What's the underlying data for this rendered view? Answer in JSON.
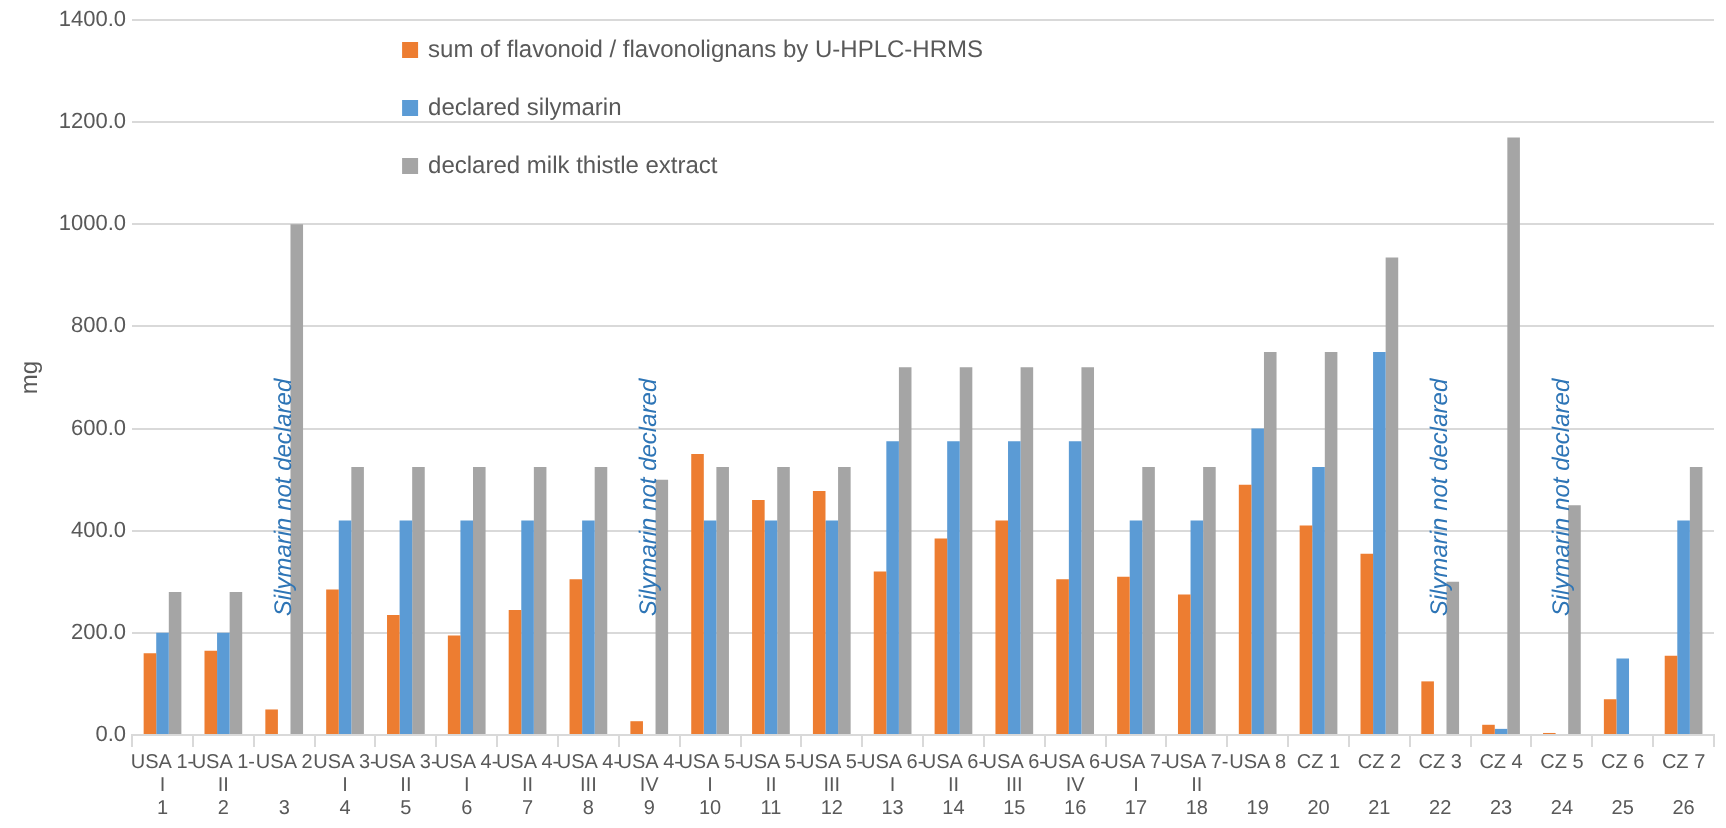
{
  "chart_data": {
    "type": "bar",
    "ylabel": "mg",
    "categories": [
      "USA 1-\nI\n1",
      "USA 1-\nII\n2",
      "USA 2\n\n3",
      "USA 3-\nI\n4",
      "USA 3-\nII\n5",
      "USA 4-\nI\n6",
      "USA 4-\nII\n7",
      "USA 4-\nIII\n8",
      "USA 4-\nIV\n9",
      "USA 5-\nI\n10",
      "USA 5-\nII\n11",
      "USA 5-\nIII\n12",
      "USA 6-\nI\n13",
      "USA 6-\nII\n14",
      "USA 6-\nIII\n15",
      "USA 6-\nIV\n16",
      "USA 7-\nI\n17",
      "USA 7-\nII\n18",
      "USA 8\n\n19",
      "CZ 1\n\n20",
      "CZ 2\n\n21",
      "CZ 3\n\n22",
      "CZ 4\n\n23",
      "CZ 5\n\n24",
      "CZ 6\n\n25",
      "CZ 7\n\n26"
    ],
    "series": [
      {
        "name": "sum of flavonoid / flavonolignans by U-HPLC-HRMS",
        "color": "#ed7d31",
        "values": [
          160,
          165,
          50,
          285,
          235,
          195,
          245,
          305,
          27,
          550,
          460,
          478,
          320,
          385,
          420,
          305,
          310,
          275,
          490,
          410,
          355,
          105,
          20,
          4,
          70,
          155
        ]
      },
      {
        "name": "declared silymarin",
        "color": "#5b9bd5",
        "values": [
          200,
          200,
          null,
          420,
          420,
          420,
          420,
          420,
          null,
          420,
          420,
          420,
          575,
          575,
          575,
          575,
          420,
          420,
          600,
          525,
          750,
          null,
          12,
          null,
          150,
          420
        ]
      },
      {
        "name": "declared milk thistle extract",
        "color": "#a5a5a5",
        "values": [
          280,
          280,
          1000,
          525,
          525,
          525,
          525,
          525,
          500,
          525,
          525,
          525,
          720,
          720,
          720,
          720,
          525,
          525,
          750,
          750,
          935,
          300,
          1170,
          450,
          null,
          525
        ]
      }
    ],
    "ylim": [
      0,
      1400
    ],
    "yticks": [
      {
        "value": 0,
        "label": "0.0"
      },
      {
        "value": 200,
        "label": "200.0"
      },
      {
        "value": 400,
        "label": "400.0"
      },
      {
        "value": 600,
        "label": "600.0"
      },
      {
        "value": 800,
        "label": "800.0"
      },
      {
        "value": 1000,
        "label": "1000.0"
      },
      {
        "value": 1200,
        "label": "1200.0"
      },
      {
        "value": 1400,
        "label": "1400.0"
      }
    ],
    "grid": "y",
    "legend": "top",
    "annotations": [
      "Silymarin not declared",
      "Silymarin not declared",
      "Silymarin not declared",
      "Silymarin not declared"
    ]
  }
}
